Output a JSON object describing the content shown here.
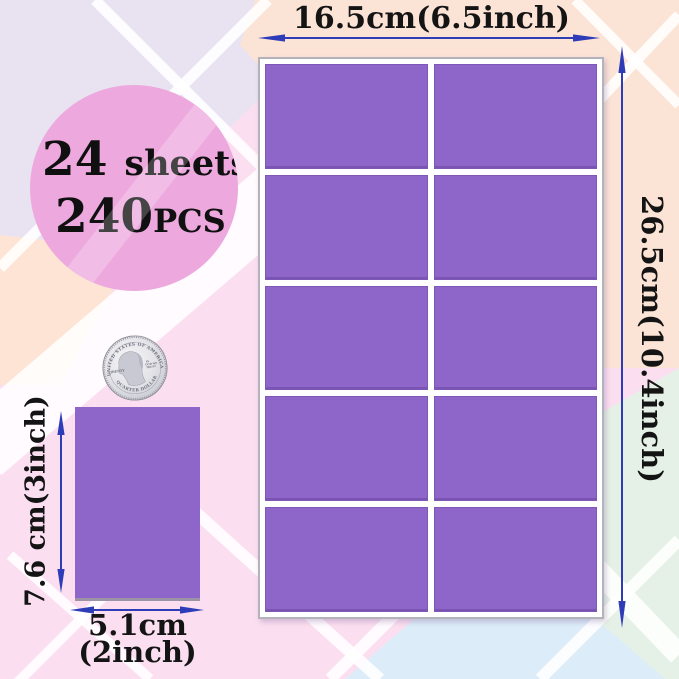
{
  "product": {
    "badge": {
      "sheets_count": "24",
      "sheets_label": "sheets",
      "pieces_count": "240",
      "pieces_label": "PCS"
    },
    "dimensions": {
      "sheet_width": "16.5cm(6.5inch)",
      "sheet_height": "26.5cm(10.4inch)",
      "label_height": "7.6 cm(3inch)",
      "label_width_line1": "5.1cm",
      "label_width_line2": "(2inch)"
    },
    "sheet": {
      "rows": 5,
      "columns": 2,
      "stickers_per_sheet": 10
    },
    "coin": {
      "top_text": "UNITED STATES OF AMERICA",
      "left_text": "LIBERTY",
      "motto_line1": "IN",
      "motto_line2": "GOD WE",
      "motto_line3": "TRUST",
      "bottom_text": "QUARTER DOLLAR"
    },
    "colors": {
      "sticker": "#8e65c9",
      "badge": "#eda9de",
      "arrow": "#2f3cb8",
      "sheet_background": "#ffffff",
      "background_lavender": "#e9e3f1",
      "background_peach": "#fbe3d6",
      "background_pink": "#fbdff0",
      "background_mint": "#e5f1e6",
      "background_blue": "#dcecf8"
    }
  }
}
